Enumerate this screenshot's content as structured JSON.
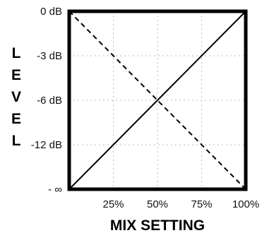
{
  "chart_data": {
    "type": "line",
    "title": "",
    "xlabel": "MIX SETTING",
    "ylabel": "LEVEL",
    "x_ticks": [
      "25%",
      "50%",
      "75%",
      "100%"
    ],
    "y_ticks": [
      "0 dB",
      "-3 dB",
      "-6 dB",
      "-12 dB",
      "- ∞"
    ],
    "x_range": [
      0,
      100
    ],
    "y_range": [
      "- ∞",
      "0 dB"
    ],
    "grid": true,
    "legend": "none",
    "series": [
      {
        "style": "solid",
        "color": "#000000",
        "x": [
          0,
          100
        ],
        "y": [
          "- ∞",
          "0 dB"
        ]
      },
      {
        "style": "dashed",
        "color": "#000000",
        "x": [
          0,
          100
        ],
        "y": [
          "0 dB",
          "- ∞"
        ]
      }
    ],
    "crossover": {
      "x": 50,
      "y": "-6 dB"
    }
  }
}
